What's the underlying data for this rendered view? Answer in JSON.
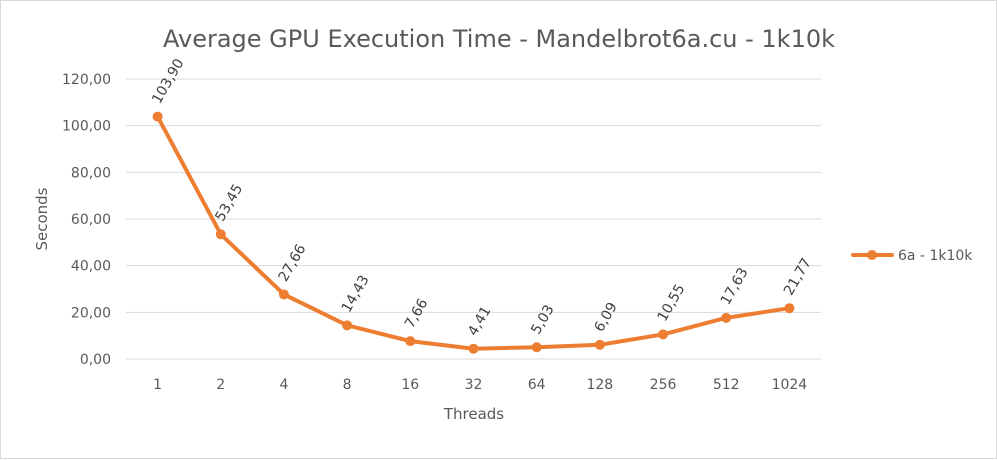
{
  "chart_data": {
    "type": "line",
    "title": "Average GPU Execution Time - Mandelbrot6a.cu - 1k10k",
    "xlabel": "Threads",
    "ylabel": "Seconds",
    "categories": [
      "1",
      "2",
      "4",
      "8",
      "16",
      "32",
      "64",
      "128",
      "256",
      "512",
      "1024"
    ],
    "series": [
      {
        "name": "6a - 1k10k",
        "values": [
          103.9,
          53.45,
          27.66,
          14.43,
          7.66,
          4.41,
          5.03,
          6.09,
          10.55,
          17.63,
          21.77
        ],
        "labels": [
          "103,90",
          "53,45",
          "27,66",
          "14,43",
          "7,66",
          "4,41",
          "5,03",
          "6,09",
          "10,55",
          "17,63",
          "21,77"
        ],
        "color": "#ED7D31"
      }
    ],
    "ylim": [
      0,
      120
    ],
    "yticks": [
      "0,00",
      "20,00",
      "40,00",
      "60,00",
      "80,00",
      "100,00",
      "120,00"
    ],
    "grid": true,
    "legend_position": "right",
    "gridline_color": "#d9d9d9"
  }
}
